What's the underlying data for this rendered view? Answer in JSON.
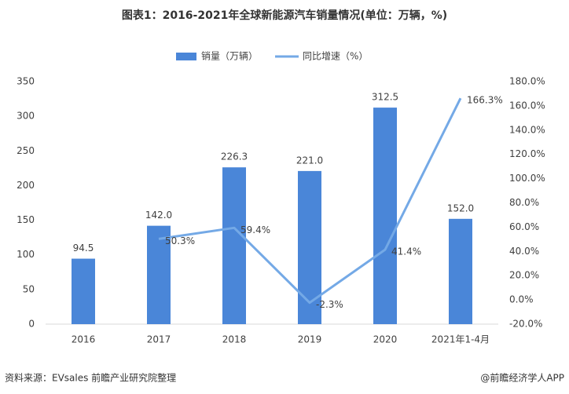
{
  "chart_data": {
    "type": "bar",
    "title": "图表1：2016-2021年全球新能源汽车销量情况(单位：万辆，%)",
    "categories": [
      "2016",
      "2017",
      "2018",
      "2019",
      "2020",
      "2021年1-4月"
    ],
    "series": [
      {
        "name": "销量（万辆）",
        "type": "bar",
        "color": "#4a86d8",
        "values": [
          94.5,
          142.0,
          226.3,
          221.0,
          312.5,
          152.0
        ],
        "value_labels": [
          "94.5",
          "142.0",
          "226.3",
          "221.0",
          "312.5",
          "152.0"
        ]
      },
      {
        "name": "同比增速（%）",
        "type": "line",
        "axis": "y2",
        "color": "#74a9e6",
        "values": [
          null,
          50.3,
          59.4,
          -2.3,
          41.4,
          166.3
        ],
        "value_labels": [
          null,
          "50.3%",
          "59.4%",
          "-2.3%",
          "41.4%",
          "166.3%"
        ]
      }
    ],
    "ylim": [
      0,
      350
    ],
    "yticks": [
      0,
      50,
      100,
      150,
      200,
      250,
      300,
      350
    ],
    "y2lim": [
      -20,
      180
    ],
    "y2ticks": [
      {
        "value": -20,
        "label": "-20.0%"
      },
      {
        "value": 0,
        "label": "0.0%"
      },
      {
        "value": 20,
        "label": "20.0%"
      },
      {
        "value": 40,
        "label": "40.0%"
      },
      {
        "value": 60,
        "label": "60.0%"
      },
      {
        "value": 80,
        "label": "80.0%"
      },
      {
        "value": 100,
        "label": "100.0%"
      },
      {
        "value": 120,
        "label": "120.0%"
      },
      {
        "value": 140,
        "label": "140.0%"
      },
      {
        "value": 160,
        "label": "160.0%"
      },
      {
        "value": 180,
        "label": "180.0%"
      }
    ],
    "grid": false,
    "legend": "top",
    "source": "资料来源：EVsales 前瞻产业研究院整理",
    "credit": "@前瞻经济学人APP"
  }
}
